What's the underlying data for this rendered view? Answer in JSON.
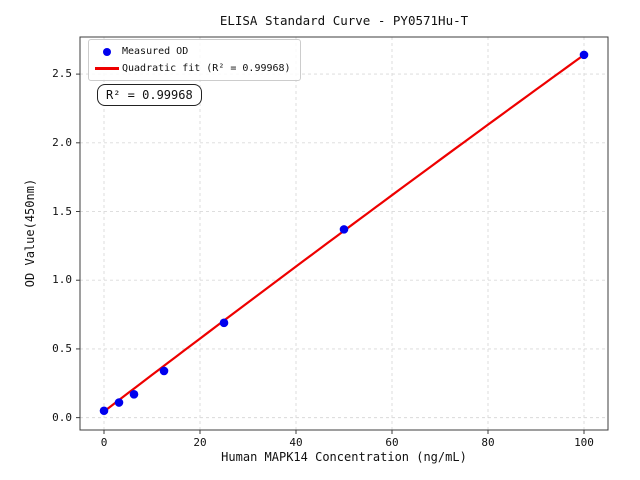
{
  "chart_data": {
    "type": "scatter",
    "title": "ELISA Standard Curve - PY0571Hu-T",
    "xlabel": "Human MAPK14 Concentration (ng/mL)",
    "ylabel": "OD Value(450nm)",
    "xlim": [
      -5,
      105
    ],
    "ylim": [
      -0.09,
      2.77
    ],
    "xticks": [
      0,
      20,
      40,
      60,
      80,
      100
    ],
    "yticks": [
      0.0,
      0.5,
      1.0,
      1.5,
      2.0,
      2.5
    ],
    "grid": true,
    "grid_style": "dashed",
    "annotation": "R² = 0.99968",
    "r_squared": 0.99968,
    "series": [
      {
        "name": "Measured OD",
        "type": "scatter",
        "color": "#0000ee",
        "x": [
          0,
          3.125,
          6.25,
          12.5,
          25,
          50,
          100
        ],
        "y": [
          0.05,
          0.11,
          0.17,
          0.34,
          0.69,
          1.37,
          2.64
        ]
      },
      {
        "name": "Quadratic fit (R² = 0.99968)",
        "type": "quadratic-line",
        "color": "#ee0000",
        "x": [
          0,
          50,
          100
        ],
        "y": [
          0.045,
          1.36,
          2.64
        ]
      }
    ],
    "legend": {
      "position": "upper left",
      "entries": [
        {
          "label": "Measured OD",
          "marker": "dot",
          "color": "#0000ee"
        },
        {
          "label": "Quadratic fit (R² = 0.99968)",
          "marker": "line",
          "color": "#ee0000"
        }
      ]
    },
    "colors": {
      "grid": "#d9d9d9",
      "spine": "#3c3c3c",
      "tick": "#3c3c3c",
      "background": "#ffffff"
    }
  }
}
